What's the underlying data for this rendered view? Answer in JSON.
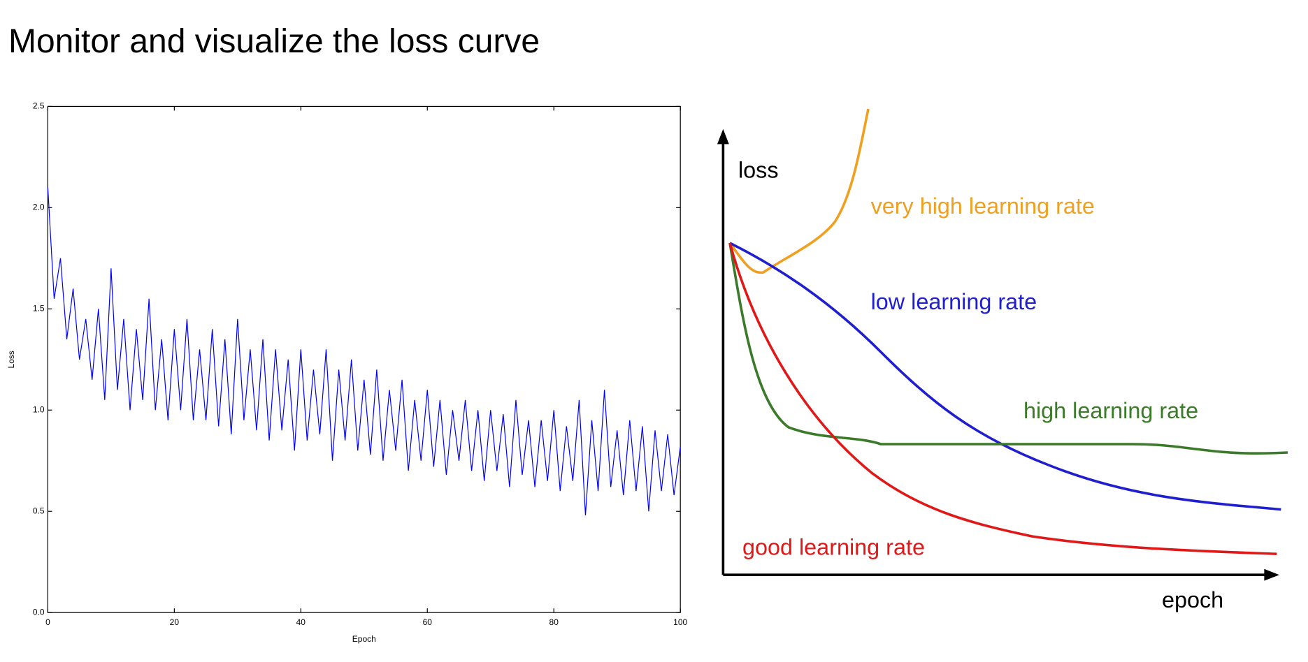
{
  "title": "Monitor and visualize the loss curve",
  "chart_data": {
    "type": "line",
    "xlabel": "Epoch",
    "ylabel": "Loss",
    "grid": false,
    "xlim": [
      0,
      100
    ],
    "ylim": [
      0,
      2.5
    ],
    "xticks": [
      0,
      20,
      40,
      60,
      80,
      100
    ],
    "yticks": [
      {
        "value": 0,
        "label": "0.0"
      },
      0.5,
      {
        "value": 1,
        "label": "1.0"
      },
      1.5,
      {
        "value": 2,
        "label": "2.0"
      },
      2.5
    ],
    "x": [
      0,
      1,
      2,
      3,
      4,
      5,
      6,
      7,
      8,
      9,
      10,
      11,
      12,
      13,
      14,
      15,
      16,
      17,
      18,
      19,
      20,
      21,
      22,
      23,
      24,
      25,
      26,
      27,
      28,
      29,
      30,
      31,
      32,
      33,
      34,
      35,
      36,
      37,
      38,
      39,
      40,
      41,
      42,
      43,
      44,
      45,
      46,
      47,
      48,
      49,
      50,
      51,
      52,
      53,
      54,
      55,
      56,
      57,
      58,
      59,
      60,
      61,
      62,
      63,
      64,
      65,
      66,
      67,
      68,
      69,
      70,
      71,
      72,
      73,
      74,
      75,
      76,
      77,
      78,
      79,
      80,
      81,
      82,
      83,
      84,
      85,
      86,
      87,
      88,
      89,
      90,
      91,
      92,
      93,
      94,
      95,
      96,
      97,
      98,
      99,
      100
    ],
    "series": [
      {
        "color": "#0000ff",
        "values": [
          2.1,
          1.55,
          1.75,
          1.35,
          1.6,
          1.25,
          1.45,
          1.15,
          1.5,
          1.05,
          1.7,
          1.1,
          1.45,
          1.0,
          1.4,
          1.05,
          1.55,
          1.0,
          1.35,
          0.95,
          1.4,
          1.0,
          1.45,
          0.95,
          1.3,
          0.95,
          1.4,
          0.92,
          1.35,
          0.88,
          1.45,
          0.95,
          1.3,
          0.9,
          1.35,
          0.85,
          1.3,
          0.9,
          1.25,
          0.8,
          1.3,
          0.85,
          1.2,
          0.88,
          1.3,
          0.75,
          1.2,
          0.85,
          1.25,
          0.8,
          1.15,
          0.78,
          1.2,
          0.75,
          1.1,
          0.8,
          1.15,
          0.7,
          1.05,
          0.75,
          1.1,
          0.72,
          1.05,
          0.68,
          1.0,
          0.75,
          1.05,
          0.7,
          1.0,
          0.65,
          1.0,
          0.7,
          0.98,
          0.62,
          1.05,
          0.68,
          0.95,
          0.62,
          0.95,
          0.65,
          1.0,
          0.6,
          0.92,
          0.65,
          1.05,
          0.48,
          0.95,
          0.6,
          1.1,
          0.62,
          0.9,
          0.58,
          0.95,
          0.6,
          0.92,
          0.5,
          0.9,
          0.6,
          0.88,
          0.58,
          0.82
        ]
      }
    ]
  },
  "diagram": {
    "y_label": "loss",
    "x_label": "epoch",
    "curves": [
      {
        "label": "very high learning rate",
        "color": "#f0a020"
      },
      {
        "label": "low learning rate",
        "color": "#1f1fd0"
      },
      {
        "label": "high learning rate",
        "color": "#3a7a28"
      },
      {
        "label": "good learning rate",
        "color": "#e01818"
      }
    ]
  }
}
